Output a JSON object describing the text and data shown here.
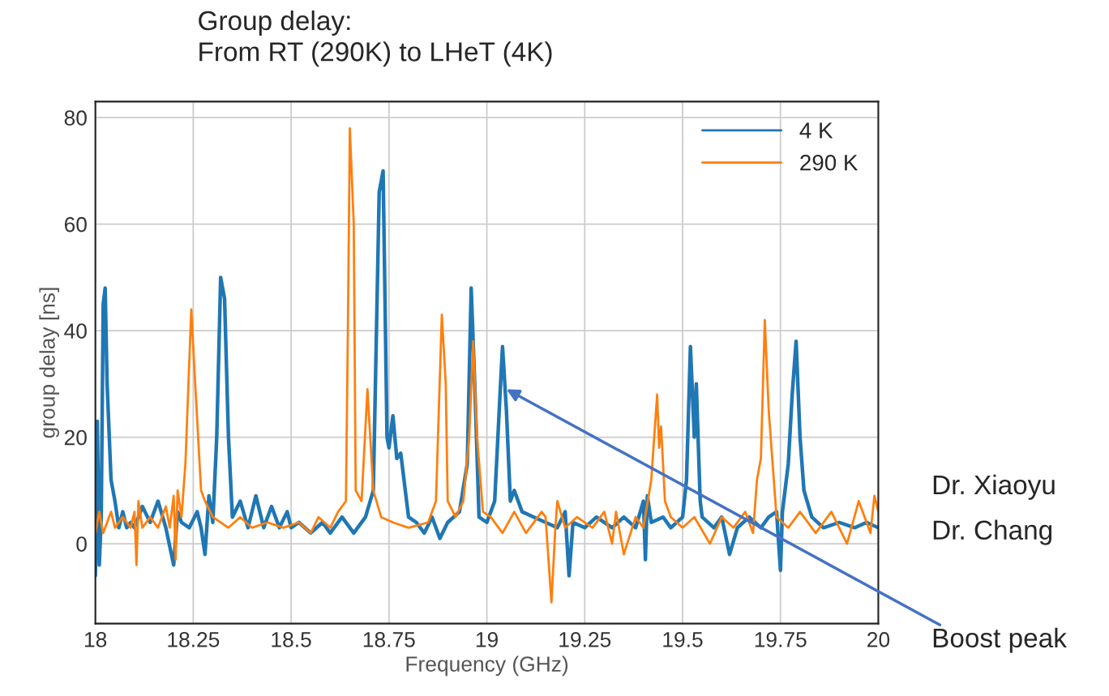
{
  "chart_data": {
    "type": "line",
    "title": "Group delay:\nFrom RT (290K) to LHeT (4K)",
    "xlabel": "Frequency (GHz)",
    "ylabel": "group delay [ns]",
    "xlim": [
      18,
      20
    ],
    "xticks": [
      18,
      18.25,
      18.5,
      18.75,
      19,
      19.25,
      19.5,
      19.75,
      20
    ],
    "ylim": [
      -15,
      83
    ],
    "yticks": [
      0,
      20,
      40,
      60,
      80
    ],
    "grid": true,
    "legend": "top right",
    "series": [
      {
        "name": "4 K",
        "color": "#1f77b4",
        "x": [
          18.0,
          18.005,
          18.01,
          18.015,
          18.02,
          18.025,
          18.03,
          18.04,
          18.05,
          18.06,
          18.07,
          18.08,
          18.09,
          18.1,
          18.12,
          18.14,
          18.16,
          18.18,
          18.2,
          18.21,
          18.22,
          18.24,
          18.26,
          18.27,
          18.28,
          18.29,
          18.3,
          18.31,
          18.32,
          18.33,
          18.34,
          18.35,
          18.37,
          18.39,
          18.41,
          18.43,
          18.45,
          18.47,
          18.49,
          18.5,
          18.52,
          18.55,
          18.58,
          18.6,
          18.63,
          18.66,
          18.69,
          18.71,
          18.725,
          18.735,
          18.745,
          18.75,
          18.76,
          18.77,
          18.78,
          18.8,
          18.82,
          18.84,
          18.86,
          18.88,
          18.9,
          18.93,
          18.95,
          18.96,
          18.97,
          18.98,
          19.0,
          19.02,
          19.035,
          19.04,
          19.05,
          19.06,
          19.07,
          19.09,
          19.12,
          19.15,
          19.18,
          19.2,
          19.21,
          19.22,
          19.25,
          19.28,
          19.32,
          19.35,
          19.38,
          19.4,
          19.405,
          19.41,
          19.42,
          19.45,
          19.47,
          19.5,
          19.51,
          19.52,
          19.53,
          19.535,
          19.545,
          19.55,
          19.58,
          19.6,
          19.62,
          19.64,
          19.67,
          19.7,
          19.72,
          19.74,
          19.75,
          19.755,
          19.77,
          19.78,
          19.79,
          19.8,
          19.81,
          19.83,
          19.86,
          19.9,
          19.94,
          19.97,
          20.0
        ],
        "values": [
          -6,
          23,
          -4,
          5,
          45,
          48,
          30,
          12,
          8,
          3,
          6,
          3,
          4,
          3,
          7,
          4,
          8,
          3,
          -4,
          6,
          4,
          3,
          6,
          3,
          -2,
          9,
          4,
          20,
          50,
          46,
          20,
          5,
          8,
          3,
          9,
          3,
          7,
          3,
          6,
          3,
          4,
          2,
          4,
          2,
          5,
          2,
          5,
          10,
          66,
          70,
          20,
          18,
          24,
          16,
          17,
          5,
          4,
          2,
          5,
          1,
          4,
          6,
          15,
          48,
          28,
          5,
          4,
          8,
          30,
          37,
          25,
          8,
          10,
          6,
          5,
          4,
          3,
          6,
          -6,
          4,
          3,
          5,
          3,
          5,
          3,
          8,
          -3,
          9,
          4,
          5,
          3,
          5,
          12,
          37,
          20,
          30,
          8,
          5,
          3,
          5,
          -2,
          3,
          5,
          3,
          5,
          6,
          -5,
          6,
          15,
          28,
          38,
          20,
          10,
          5,
          3,
          4,
          3,
          4,
          3
        ]
      },
      {
        "name": "290 K",
        "color": "#ff7f0e",
        "x": [
          18.0,
          18.01,
          18.02,
          18.03,
          18.04,
          18.05,
          18.07,
          18.09,
          18.1,
          18.105,
          18.11,
          18.12,
          18.14,
          18.16,
          18.18,
          18.19,
          18.2,
          18.205,
          18.21,
          18.22,
          18.23,
          18.245,
          18.255,
          18.27,
          18.28,
          18.3,
          18.32,
          18.34,
          18.37,
          18.4,
          18.44,
          18.48,
          18.52,
          18.55,
          18.57,
          18.6,
          18.62,
          18.64,
          18.645,
          18.65,
          18.66,
          18.665,
          18.68,
          18.695,
          18.71,
          18.73,
          18.76,
          18.8,
          18.85,
          18.87,
          18.885,
          18.895,
          18.9,
          18.92,
          18.94,
          18.955,
          18.965,
          18.975,
          18.99,
          19.01,
          19.04,
          19.07,
          19.1,
          19.14,
          19.15,
          19.165,
          19.175,
          19.18,
          19.2,
          19.23,
          19.27,
          19.3,
          19.32,
          19.33,
          19.35,
          19.38,
          19.4,
          19.42,
          19.435,
          19.44,
          19.445,
          19.455,
          19.47,
          19.5,
          19.53,
          19.57,
          19.6,
          19.63,
          19.66,
          19.68,
          19.69,
          19.7,
          19.71,
          19.72,
          19.74,
          19.77,
          19.8,
          19.84,
          19.88,
          19.92,
          19.95,
          19.98,
          19.99,
          20.0
        ],
        "values": [
          2,
          6,
          2,
          4,
          6,
          3,
          5,
          3,
          6,
          -4,
          8,
          3,
          5,
          3,
          7,
          3,
          9,
          -3,
          10,
          5,
          15,
          44,
          30,
          10,
          8,
          5,
          4,
          3,
          5,
          3,
          4,
          3,
          4,
          2,
          5,
          3,
          6,
          8,
          40,
          78,
          60,
          10,
          8,
          29,
          10,
          5,
          4,
          3,
          4,
          8,
          43,
          30,
          8,
          5,
          8,
          20,
          38,
          20,
          6,
          5,
          2,
          6,
          2,
          6,
          5,
          -11,
          3,
          8,
          3,
          5,
          3,
          6,
          0,
          6,
          -2,
          5,
          3,
          12,
          28,
          18,
          22,
          8,
          5,
          3,
          5,
          0,
          5,
          3,
          6,
          2,
          12,
          16,
          42,
          25,
          5,
          3,
          6,
          2,
          6,
          0,
          8,
          2,
          9,
          6
        ]
      }
    ],
    "annotations": [
      {
        "text": "Boost peak",
        "x": 19.05,
        "y": 29
      },
      "Dr. Xiaoyu",
      "Dr. Chang"
    ]
  }
}
